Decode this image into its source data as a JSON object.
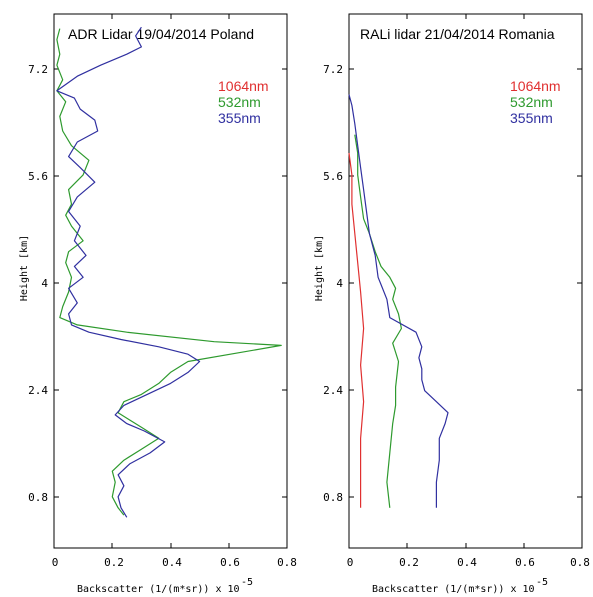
{
  "chart_data": [
    {
      "type": "line",
      "title": "ADR Lidar 19/04/2014 Poland",
      "xlabel": "Backscatter (1/(m*sr)) x 10",
      "xlabel_exponent": "-5",
      "ylabel": "Height [km]",
      "xlim": [
        0,
        0.8
      ],
      "ylim": [
        0.3,
        7.6
      ],
      "xticks": [
        "0",
        "0.2",
        "0.4",
        "0.6",
        "0.8"
      ],
      "yticks": [
        "0.8",
        "2.4",
        "4",
        "5.6",
        "7.2"
      ],
      "grid": false,
      "legend": "top-right",
      "series": [
        {
          "name": "1064nm",
          "color": "#e03030",
          "points": []
        },
        {
          "name": "532nm",
          "color": "#2e9a2e",
          "points": [
            [
              0.24,
              0.75
            ],
            [
              0.22,
              0.85
            ],
            [
              0.2,
              1.0
            ],
            [
              0.21,
              1.2
            ],
            [
              0.2,
              1.35
            ],
            [
              0.24,
              1.5
            ],
            [
              0.3,
              1.65
            ],
            [
              0.36,
              1.8
            ],
            [
              0.3,
              1.95
            ],
            [
              0.26,
              2.05
            ],
            [
              0.22,
              2.15
            ],
            [
              0.24,
              2.3
            ],
            [
              0.3,
              2.4
            ],
            [
              0.36,
              2.55
            ],
            [
              0.4,
              2.7
            ],
            [
              0.46,
              2.85
            ],
            [
              0.78,
              3.07
            ],
            [
              0.55,
              3.12
            ],
            [
              0.25,
              3.25
            ],
            [
              0.08,
              3.35
            ],
            [
              0.02,
              3.45
            ],
            [
              0.03,
              3.6
            ],
            [
              0.05,
              3.8
            ],
            [
              0.06,
              4.0
            ],
            [
              0.04,
              4.2
            ],
            [
              0.05,
              4.35
            ],
            [
              0.1,
              4.5
            ],
            [
              0.06,
              4.7
            ],
            [
              0.04,
              4.85
            ],
            [
              0.06,
              5.0
            ],
            [
              0.05,
              5.2
            ],
            [
              0.1,
              5.4
            ],
            [
              0.12,
              5.6
            ],
            [
              0.06,
              5.8
            ],
            [
              0.03,
              6.0
            ],
            [
              0.02,
              6.2
            ],
            [
              0.04,
              6.4
            ],
            [
              0.01,
              6.55
            ],
            [
              0.03,
              6.7
            ],
            [
              0.01,
              6.9
            ],
            [
              0.02,
              7.05
            ],
            [
              0.01,
              7.25
            ],
            [
              0.02,
              7.4
            ]
          ]
        },
        {
          "name": "355nm",
          "color": "#3030a0",
          "points": [
            [
              0.25,
              0.72
            ],
            [
              0.23,
              0.85
            ],
            [
              0.22,
              1.0
            ],
            [
              0.24,
              1.15
            ],
            [
              0.22,
              1.3
            ],
            [
              0.26,
              1.45
            ],
            [
              0.33,
              1.6
            ],
            [
              0.38,
              1.75
            ],
            [
              0.31,
              1.9
            ],
            [
              0.25,
              2.0
            ],
            [
              0.21,
              2.12
            ],
            [
              0.24,
              2.25
            ],
            [
              0.32,
              2.4
            ],
            [
              0.4,
              2.55
            ],
            [
              0.46,
              2.7
            ],
            [
              0.5,
              2.85
            ],
            [
              0.46,
              2.95
            ],
            [
              0.36,
              3.05
            ],
            [
              0.23,
              3.15
            ],
            [
              0.12,
              3.25
            ],
            [
              0.06,
              3.35
            ],
            [
              0.05,
              3.5
            ],
            [
              0.08,
              3.65
            ],
            [
              0.05,
              3.85
            ],
            [
              0.1,
              4.0
            ],
            [
              0.07,
              4.15
            ],
            [
              0.11,
              4.3
            ],
            [
              0.07,
              4.5
            ],
            [
              0.09,
              4.7
            ],
            [
              0.05,
              4.9
            ],
            [
              0.08,
              5.1
            ],
            [
              0.14,
              5.3
            ],
            [
              0.09,
              5.5
            ],
            [
              0.05,
              5.65
            ],
            [
              0.08,
              5.85
            ],
            [
              0.15,
              6.0
            ],
            [
              0.14,
              6.15
            ],
            [
              0.09,
              6.3
            ],
            [
              0.07,
              6.45
            ],
            [
              0.01,
              6.55
            ],
            [
              0.08,
              6.75
            ],
            [
              0.16,
              6.9
            ],
            [
              0.25,
              7.05
            ],
            [
              0.3,
              7.15
            ],
            [
              0.28,
              7.3
            ],
            [
              0.3,
              7.42
            ]
          ]
        }
      ]
    },
    {
      "type": "line",
      "title": "RALi lidar 21/04/2014 Romania",
      "xlabel": "Backscatter (1/(m*sr)) x 10",
      "xlabel_exponent": "-5",
      "ylabel": "Height [km]",
      "xlim": [
        0,
        0.8
      ],
      "ylim": [
        0.3,
        7.6
      ],
      "xticks": [
        "0",
        "0.2",
        "0.4",
        "0.6",
        "0.8"
      ],
      "yticks": [
        "0.8",
        "2.4",
        "4",
        "5.6",
        "7.2"
      ],
      "grid": false,
      "legend": "top-right",
      "series": [
        {
          "name": "1064nm",
          "color": "#e03030",
          "points": [
            [
              0.04,
              0.85
            ],
            [
              0.04,
              1.3
            ],
            [
              0.04,
              1.8
            ],
            [
              0.05,
              2.3
            ],
            [
              0.04,
              2.8
            ],
            [
              0.05,
              3.3
            ],
            [
              0.04,
              3.8
            ],
            [
              0.03,
              4.2
            ],
            [
              0.02,
              4.6
            ],
            [
              0.01,
              5.0
            ],
            [
              0.01,
              5.4
            ],
            [
              0.0,
              5.7
            ]
          ]
        },
        {
          "name": "532nm",
          "color": "#2e9a2e",
          "points": [
            [
              0.14,
              0.85
            ],
            [
              0.13,
              1.2
            ],
            [
              0.14,
              1.6
            ],
            [
              0.15,
              2.0
            ],
            [
              0.16,
              2.25
            ],
            [
              0.16,
              2.5
            ],
            [
              0.17,
              2.85
            ],
            [
              0.15,
              3.1
            ],
            [
              0.18,
              3.3
            ],
            [
              0.17,
              3.5
            ],
            [
              0.15,
              3.7
            ],
            [
              0.16,
              3.85
            ],
            [
              0.14,
              4.0
            ],
            [
              0.11,
              4.15
            ],
            [
              0.09,
              4.35
            ],
            [
              0.07,
              4.6
            ],
            [
              0.05,
              4.8
            ],
            [
              0.04,
              5.1
            ],
            [
              0.03,
              5.4
            ],
            [
              0.03,
              5.7
            ],
            [
              0.02,
              5.95
            ]
          ]
        },
        {
          "name": "355nm",
          "color": "#3030a0",
          "points": [
            [
              0.3,
              0.85
            ],
            [
              0.3,
              1.2
            ],
            [
              0.31,
              1.5
            ],
            [
              0.31,
              1.8
            ],
            [
              0.33,
              2.0
            ],
            [
              0.34,
              2.15
            ],
            [
              0.3,
              2.3
            ],
            [
              0.26,
              2.45
            ],
            [
              0.25,
              2.6
            ],
            [
              0.25,
              2.75
            ],
            [
              0.24,
              2.9
            ],
            [
              0.25,
              3.05
            ],
            [
              0.23,
              3.25
            ],
            [
              0.14,
              3.45
            ],
            [
              0.13,
              3.7
            ],
            [
              0.1,
              4.0
            ],
            [
              0.09,
              4.3
            ],
            [
              0.07,
              4.6
            ],
            [
              0.06,
              4.9
            ],
            [
              0.05,
              5.2
            ],
            [
              0.04,
              5.5
            ],
            [
              0.03,
              5.8
            ],
            [
              0.02,
              6.1
            ],
            [
              0.01,
              6.35
            ],
            [
              0.0,
              6.5
            ]
          ]
        }
      ]
    }
  ]
}
